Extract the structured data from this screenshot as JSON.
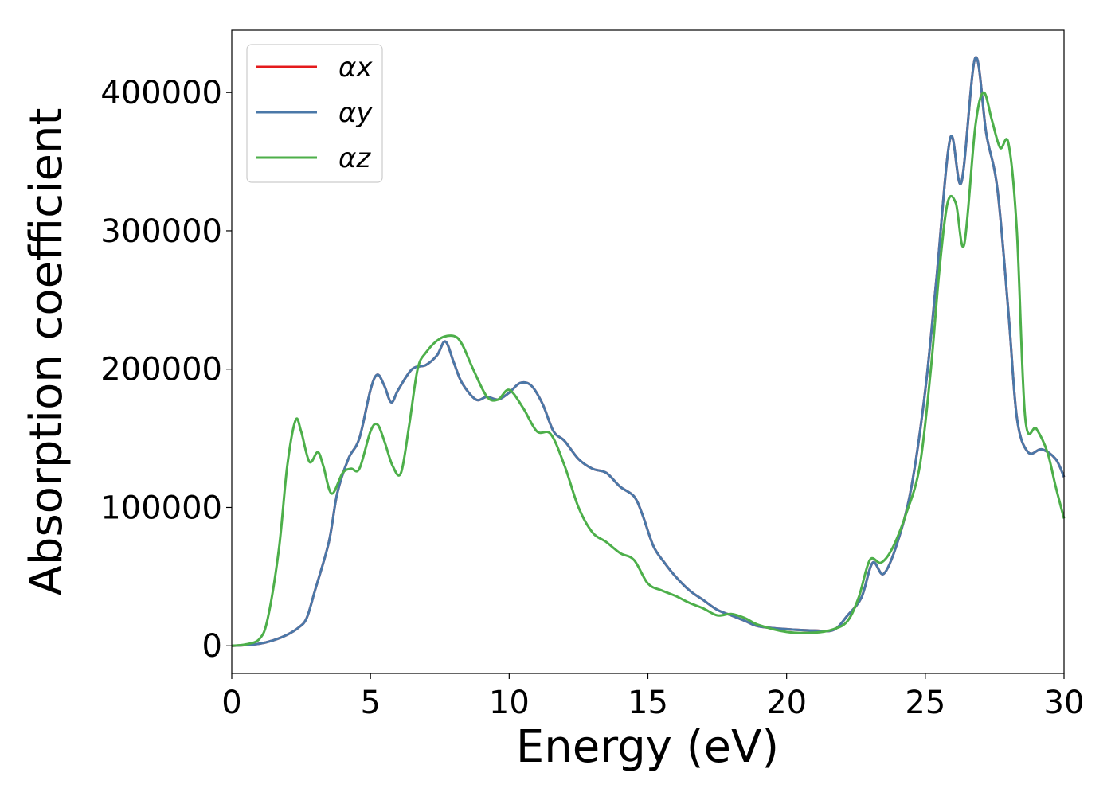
{
  "chart_data": {
    "type": "line",
    "xlabel": "Energy (eV)",
    "ylabel": "Absorption coefficient",
    "xlim": [
      0,
      30
    ],
    "ylim": [
      -20000,
      445000
    ],
    "xticks": [
      0,
      5,
      10,
      15,
      20,
      25,
      30
    ],
    "yticks": [
      0,
      100000,
      200000,
      300000,
      400000
    ],
    "grid": false,
    "legend_position": "top-left",
    "series": [
      {
        "name": "αx",
        "color": "#e41a1c",
        "x": [
          0,
          0.5,
          1.0,
          1.5,
          2.0,
          2.4,
          2.7,
          3.0,
          3.5,
          3.8,
          4.2,
          4.6,
          5.0,
          5.25,
          5.5,
          5.75,
          6.0,
          6.5,
          7.0,
          7.4,
          7.7,
          8.0,
          8.3,
          8.8,
          9.2,
          9.6,
          10.0,
          10.4,
          10.8,
          11.2,
          11.6,
          12.0,
          12.5,
          13.0,
          13.5,
          14.0,
          14.5,
          14.8,
          15.2,
          15.6,
          16.0,
          16.5,
          17.0,
          17.5,
          18.0,
          18.5,
          19.0,
          20.0,
          21.0,
          21.7,
          22.2,
          22.7,
          23.1,
          23.5,
          24.0,
          24.5,
          25.0,
          25.4,
          25.9,
          26.3,
          26.8,
          27.2,
          27.6,
          28.0,
          28.3,
          28.7,
          29.2,
          29.7,
          30.0
        ],
        "values": [
          0,
          500,
          1500,
          4000,
          8000,
          13000,
          20000,
          40000,
          75000,
          110000,
          135000,
          150000,
          185000,
          196000,
          188000,
          176000,
          185000,
          200000,
          203000,
          210000,
          220000,
          205000,
          190000,
          178000,
          180000,
          178000,
          183000,
          190000,
          188000,
          175000,
          155000,
          148000,
          135000,
          128000,
          125000,
          115000,
          108000,
          95000,
          72000,
          60000,
          50000,
          40000,
          33000,
          26000,
          22000,
          18000,
          14000,
          12000,
          11000,
          11500,
          22000,
          35000,
          60000,
          52000,
          75000,
          115000,
          185000,
          265000,
          367000,
          335000,
          425000,
          370000,
          330000,
          240000,
          165000,
          140000,
          142000,
          135000,
          122000
        ]
      },
      {
        "name": "αy",
        "color": "#4a78a8",
        "x": [
          0,
          0.5,
          1.0,
          1.5,
          2.0,
          2.4,
          2.7,
          3.0,
          3.5,
          3.8,
          4.2,
          4.6,
          5.0,
          5.25,
          5.5,
          5.75,
          6.0,
          6.5,
          7.0,
          7.4,
          7.7,
          8.0,
          8.3,
          8.8,
          9.2,
          9.6,
          10.0,
          10.4,
          10.8,
          11.2,
          11.6,
          12.0,
          12.5,
          13.0,
          13.5,
          14.0,
          14.5,
          14.8,
          15.2,
          15.6,
          16.0,
          16.5,
          17.0,
          17.5,
          18.0,
          18.5,
          19.0,
          20.0,
          21.0,
          21.7,
          22.2,
          22.7,
          23.1,
          23.5,
          24.0,
          24.5,
          25.0,
          25.4,
          25.9,
          26.3,
          26.8,
          27.2,
          27.6,
          28.0,
          28.3,
          28.7,
          29.2,
          29.7,
          30.0
        ],
        "values": [
          0,
          500,
          1500,
          4000,
          8000,
          13000,
          20000,
          40000,
          75000,
          110000,
          135000,
          150000,
          185000,
          196000,
          188000,
          176000,
          185000,
          200000,
          203000,
          210000,
          220000,
          205000,
          190000,
          178000,
          180000,
          178000,
          183000,
          190000,
          188000,
          175000,
          155000,
          148000,
          135000,
          128000,
          125000,
          115000,
          108000,
          95000,
          72000,
          60000,
          50000,
          40000,
          33000,
          26000,
          22000,
          18000,
          14000,
          12000,
          11000,
          11500,
          22000,
          35000,
          60000,
          52000,
          75000,
          115000,
          185000,
          265000,
          367000,
          335000,
          425000,
          370000,
          330000,
          240000,
          165000,
          140000,
          142000,
          135000,
          122000
        ]
      },
      {
        "name": "αz",
        "color": "#4daf4a",
        "x": [
          0,
          0.5,
          1.0,
          1.3,
          1.7,
          2.0,
          2.3,
          2.5,
          2.8,
          3.1,
          3.3,
          3.6,
          4.0,
          4.3,
          4.6,
          5.0,
          5.25,
          5.5,
          5.8,
          6.1,
          6.4,
          6.7,
          7.0,
          7.5,
          8.0,
          8.3,
          8.7,
          9.2,
          9.6,
          10.0,
          10.5,
          11.0,
          11.5,
          12.0,
          12.5,
          13.0,
          13.5,
          14.0,
          14.5,
          15.0,
          15.5,
          16.0,
          16.5,
          17.0,
          17.5,
          18.0,
          18.5,
          19.0,
          20.0,
          21.0,
          21.7,
          22.2,
          22.6,
          23.0,
          23.4,
          23.8,
          24.3,
          24.8,
          25.2,
          25.5,
          25.8,
          26.1,
          26.4,
          26.8,
          27.1,
          27.4,
          27.7,
          28.0,
          28.3,
          28.6,
          29.0,
          29.4,
          29.7,
          30.0
        ],
        "values": [
          0,
          1000,
          5000,
          20000,
          70000,
          130000,
          163000,
          155000,
          133000,
          140000,
          130000,
          110000,
          125000,
          128000,
          128000,
          155000,
          160000,
          148000,
          130000,
          125000,
          160000,
          200000,
          212000,
          222000,
          224000,
          218000,
          200000,
          180000,
          178000,
          185000,
          172000,
          155000,
          153000,
          130000,
          100000,
          82000,
          75000,
          67000,
          62000,
          45000,
          40000,
          36000,
          31000,
          27000,
          22000,
          23000,
          20000,
          15000,
          10000,
          9500,
          12000,
          18000,
          35000,
          62000,
          60000,
          70000,
          95000,
          130000,
          200000,
          270000,
          320000,
          320000,
          290000,
          375000,
          400000,
          380000,
          360000,
          363000,
          300000,
          165000,
          157000,
          140000,
          115000,
          92000
        ]
      }
    ]
  }
}
